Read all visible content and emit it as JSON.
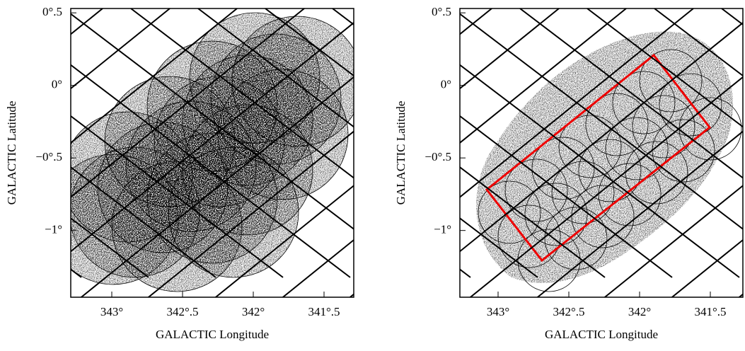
{
  "chart_data": [
    {
      "type": "coverage-map",
      "xlabel": "GALACTIC Longitude",
      "ylabel": "GALACTIC Latitude",
      "xlim": [
        343.29,
        341.29
      ],
      "ylim": [
        -1.46,
        0.53
      ],
      "xticks": [
        {
          "value": 343,
          "label": "343°"
        },
        {
          "value": 342.5,
          "label": "342°.5"
        },
        {
          "value": 342,
          "label": "342°"
        },
        {
          "value": 341.5,
          "label": "341°.5"
        }
      ],
      "yticks": [
        {
          "value": 0.5,
          "label": "0°.5"
        },
        {
          "value": 0,
          "label": "0°"
        },
        {
          "value": -0.5,
          "label": "−0°.5"
        },
        {
          "value": -1,
          "label": "−1°"
        }
      ]
    },
    {
      "type": "coverage-map",
      "xlabel": "GALACTIC Longitude",
      "ylabel": "GALACTIC Latitude",
      "xlim": [
        343.27,
        341.27
      ],
      "ylim": [
        -1.46,
        0.53
      ],
      "xticks": [
        {
          "value": 343,
          "label": "343°"
        },
        {
          "value": 342.5,
          "label": "342°.5"
        },
        {
          "value": 342,
          "label": "342°"
        },
        {
          "value": 341.5,
          "label": "341°.5"
        }
      ],
      "yticks": [
        {
          "value": 0.5,
          "label": "0°.5"
        },
        {
          "value": 0,
          "label": "0°"
        },
        {
          "value": -0.5,
          "label": "−0°.5"
        },
        {
          "value": -1,
          "label": "−1°"
        }
      ]
    }
  ]
}
